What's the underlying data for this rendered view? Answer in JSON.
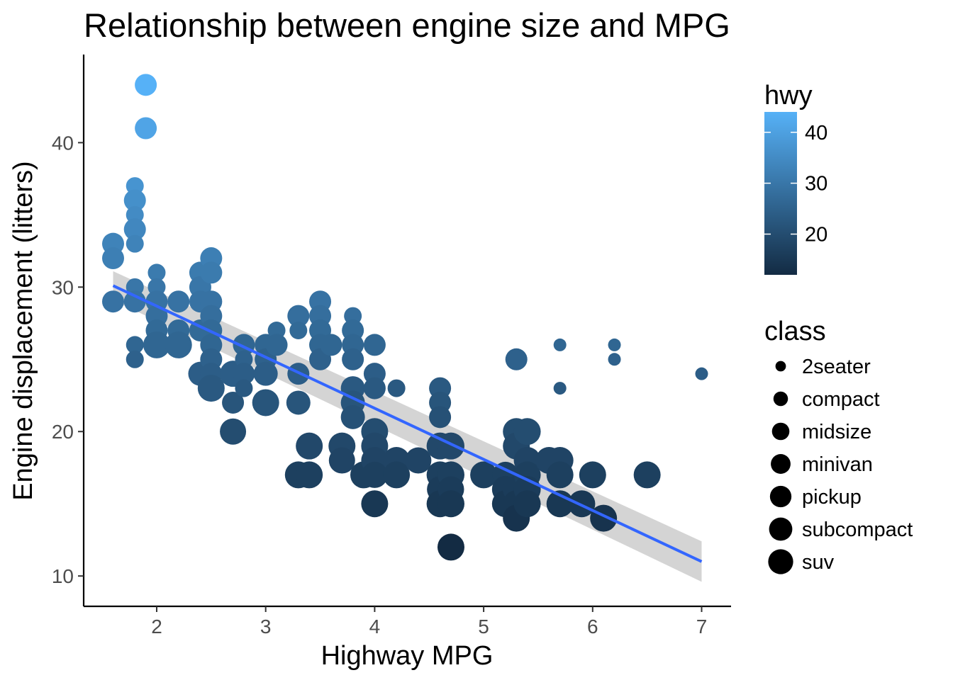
{
  "chart_data": {
    "type": "scatter",
    "title": "Relationship between engine size and MPG",
    "xlabel": "Highway MPG",
    "ylabel": "Engine displacement (litters)",
    "xlim": [
      1.33,
      7.27
    ],
    "ylim": [
      7.9,
      46.1
    ],
    "x_ticks": [
      2,
      3,
      4,
      5,
      6,
      7
    ],
    "y_ticks": [
      10,
      20,
      30,
      40
    ],
    "grid": false,
    "color_legend": {
      "title": "hwy",
      "min": 12,
      "max": 44,
      "ticks": [
        20,
        30,
        40
      ],
      "low_color": "#132B43",
      "high_color": "#56B1F7"
    },
    "size_legend": {
      "title": "class",
      "items": [
        "2seater",
        "compact",
        "midsize",
        "minivan",
        "pickup",
        "subcompact",
        "suv"
      ]
    },
    "legend_position": "right",
    "trend_line": {
      "method": "linear",
      "color": "#3366FF",
      "x": [
        1.6,
        7.0
      ],
      "y": [
        30.1,
        11.0
      ],
      "band_lower": [
        29.1,
        9.6
      ],
      "band_upper": [
        31.1,
        12.4
      ],
      "band_color": "#cccccc"
    },
    "points": [
      {
        "x": 1.6,
        "y": 33,
        "class": "subcompact"
      },
      {
        "x": 1.6,
        "y": 32,
        "class": "subcompact"
      },
      {
        "x": 1.6,
        "y": 29,
        "class": "subcompact"
      },
      {
        "x": 1.8,
        "y": 37,
        "class": "compact"
      },
      {
        "x": 1.8,
        "y": 36,
        "class": "subcompact"
      },
      {
        "x": 1.8,
        "y": 35,
        "class": "compact"
      },
      {
        "x": 1.8,
        "y": 34,
        "class": "subcompact"
      },
      {
        "x": 1.8,
        "y": 33,
        "class": "compact"
      },
      {
        "x": 1.8,
        "y": 30,
        "class": "compact"
      },
      {
        "x": 1.8,
        "y": 29,
        "class": "midsize"
      },
      {
        "x": 1.8,
        "y": 26,
        "class": "compact"
      },
      {
        "x": 1.8,
        "y": 25,
        "class": "compact"
      },
      {
        "x": 1.9,
        "y": 44,
        "class": "subcompact"
      },
      {
        "x": 1.9,
        "y": 41,
        "class": "subcompact"
      },
      {
        "x": 2.0,
        "y": 31,
        "class": "compact"
      },
      {
        "x": 2.0,
        "y": 30,
        "class": "compact"
      },
      {
        "x": 2.0,
        "y": 29,
        "class": "compact"
      },
      {
        "x": 2.0,
        "y": 29,
        "class": "subcompact"
      },
      {
        "x": 2.0,
        "y": 28,
        "class": "subcompact"
      },
      {
        "x": 2.0,
        "y": 27,
        "class": "subcompact"
      },
      {
        "x": 2.0,
        "y": 26,
        "class": "suv"
      },
      {
        "x": 2.2,
        "y": 29,
        "class": "midsize"
      },
      {
        "x": 2.2,
        "y": 27,
        "class": "midsize"
      },
      {
        "x": 2.2,
        "y": 26,
        "class": "suv"
      },
      {
        "x": 2.4,
        "y": 31,
        "class": "midsize"
      },
      {
        "x": 2.4,
        "y": 30,
        "class": "midsize"
      },
      {
        "x": 2.4,
        "y": 29,
        "class": "midsize"
      },
      {
        "x": 2.4,
        "y": 27,
        "class": "subcompact"
      },
      {
        "x": 2.4,
        "y": 24,
        "class": "minivan"
      },
      {
        "x": 2.5,
        "y": 32,
        "class": "midsize"
      },
      {
        "x": 2.5,
        "y": 31,
        "class": "midsize"
      },
      {
        "x": 2.5,
        "y": 29,
        "class": "subcompact"
      },
      {
        "x": 2.5,
        "y": 28,
        "class": "subcompact"
      },
      {
        "x": 2.5,
        "y": 27,
        "class": "subcompact"
      },
      {
        "x": 2.5,
        "y": 26,
        "class": "subcompact"
      },
      {
        "x": 2.5,
        "y": 25,
        "class": "subcompact"
      },
      {
        "x": 2.5,
        "y": 24,
        "class": "midsize"
      },
      {
        "x": 2.5,
        "y": 23,
        "class": "suv"
      },
      {
        "x": 2.7,
        "y": 24,
        "class": "pickup"
      },
      {
        "x": 2.7,
        "y": 22,
        "class": "midsize"
      },
      {
        "x": 2.7,
        "y": 20,
        "class": "pickup"
      },
      {
        "x": 2.8,
        "y": 26,
        "class": "midsize"
      },
      {
        "x": 2.8,
        "y": 25,
        "class": "compact"
      },
      {
        "x": 2.8,
        "y": 24,
        "class": "subcompact"
      },
      {
        "x": 2.8,
        "y": 23,
        "class": "compact"
      },
      {
        "x": 3.0,
        "y": 26,
        "class": "midsize"
      },
      {
        "x": 3.0,
        "y": 25,
        "class": "midsize"
      },
      {
        "x": 3.0,
        "y": 24,
        "class": "minivan"
      },
      {
        "x": 3.0,
        "y": 22,
        "class": "suv"
      },
      {
        "x": 3.1,
        "y": 27,
        "class": "compact"
      },
      {
        "x": 3.1,
        "y": 26,
        "class": "midsize"
      },
      {
        "x": 3.3,
        "y": 28,
        "class": "midsize"
      },
      {
        "x": 3.3,
        "y": 27,
        "class": "compact"
      },
      {
        "x": 3.3,
        "y": 24,
        "class": "midsize"
      },
      {
        "x": 3.3,
        "y": 22,
        "class": "minivan"
      },
      {
        "x": 3.3,
        "y": 17,
        "class": "suv"
      },
      {
        "x": 3.4,
        "y": 19,
        "class": "suv"
      },
      {
        "x": 3.4,
        "y": 17,
        "class": "suv"
      },
      {
        "x": 3.5,
        "y": 29,
        "class": "midsize"
      },
      {
        "x": 3.5,
        "y": 28,
        "class": "midsize"
      },
      {
        "x": 3.5,
        "y": 27,
        "class": "midsize"
      },
      {
        "x": 3.5,
        "y": 26,
        "class": "midsize"
      },
      {
        "x": 3.5,
        "y": 25,
        "class": "midsize"
      },
      {
        "x": 3.6,
        "y": 26,
        "class": "midsize"
      },
      {
        "x": 3.7,
        "y": 19,
        "class": "suv"
      },
      {
        "x": 3.7,
        "y": 18,
        "class": "pickup"
      },
      {
        "x": 3.8,
        "y": 28,
        "class": "compact"
      },
      {
        "x": 3.8,
        "y": 27,
        "class": "midsize"
      },
      {
        "x": 3.8,
        "y": 26,
        "class": "midsize"
      },
      {
        "x": 3.8,
        "y": 25,
        "class": "subcompact"
      },
      {
        "x": 3.8,
        "y": 23,
        "class": "minivan"
      },
      {
        "x": 3.8,
        "y": 22,
        "class": "minivan"
      },
      {
        "x": 3.8,
        "y": 21,
        "class": "minivan"
      },
      {
        "x": 3.9,
        "y": 17,
        "class": "suv"
      },
      {
        "x": 4.0,
        "y": 26,
        "class": "subcompact"
      },
      {
        "x": 4.0,
        "y": 24,
        "class": "subcompact"
      },
      {
        "x": 4.0,
        "y": 23,
        "class": "midsize"
      },
      {
        "x": 4.0,
        "y": 20,
        "class": "suv"
      },
      {
        "x": 4.0,
        "y": 19,
        "class": "suv"
      },
      {
        "x": 4.0,
        "y": 18,
        "class": "suv"
      },
      {
        "x": 4.0,
        "y": 17,
        "class": "pickup"
      },
      {
        "x": 4.0,
        "y": 15,
        "class": "suv"
      },
      {
        "x": 4.2,
        "y": 23,
        "class": "compact"
      },
      {
        "x": 4.2,
        "y": 18,
        "class": "suv"
      },
      {
        "x": 4.2,
        "y": 17,
        "class": "suv"
      },
      {
        "x": 4.4,
        "y": 18,
        "class": "pickup"
      },
      {
        "x": 4.6,
        "y": 23,
        "class": "subcompact"
      },
      {
        "x": 4.6,
        "y": 22,
        "class": "subcompact"
      },
      {
        "x": 4.6,
        "y": 21,
        "class": "subcompact"
      },
      {
        "x": 4.6,
        "y": 19,
        "class": "suv"
      },
      {
        "x": 4.6,
        "y": 17,
        "class": "suv"
      },
      {
        "x": 4.6,
        "y": 16,
        "class": "pickup"
      },
      {
        "x": 4.6,
        "y": 15,
        "class": "suv"
      },
      {
        "x": 4.7,
        "y": 19,
        "class": "suv"
      },
      {
        "x": 4.7,
        "y": 17,
        "class": "suv"
      },
      {
        "x": 4.7,
        "y": 16,
        "class": "pickup"
      },
      {
        "x": 4.7,
        "y": 15,
        "class": "suv"
      },
      {
        "x": 4.7,
        "y": 12,
        "class": "suv"
      },
      {
        "x": 5.0,
        "y": 17,
        "class": "suv"
      },
      {
        "x": 5.2,
        "y": 17,
        "class": "pickup"
      },
      {
        "x": 5.2,
        "y": 16,
        "class": "suv"
      },
      {
        "x": 5.2,
        "y": 15,
        "class": "suv"
      },
      {
        "x": 5.3,
        "y": 25,
        "class": "midsize"
      },
      {
        "x": 5.3,
        "y": 20,
        "class": "suv"
      },
      {
        "x": 5.3,
        "y": 19,
        "class": "suv"
      },
      {
        "x": 5.3,
        "y": 16,
        "class": "suv"
      },
      {
        "x": 5.3,
        "y": 15,
        "class": "suv"
      },
      {
        "x": 5.3,
        "y": 14,
        "class": "suv"
      },
      {
        "x": 5.4,
        "y": 20,
        "class": "suv"
      },
      {
        "x": 5.4,
        "y": 18,
        "class": "suv"
      },
      {
        "x": 5.4,
        "y": 17,
        "class": "suv"
      },
      {
        "x": 5.4,
        "y": 16,
        "class": "suv"
      },
      {
        "x": 5.4,
        "y": 15,
        "class": "suv"
      },
      {
        "x": 5.6,
        "y": 18,
        "class": "suv"
      },
      {
        "x": 5.7,
        "y": 26,
        "class": "2seater"
      },
      {
        "x": 5.7,
        "y": 23,
        "class": "2seater"
      },
      {
        "x": 5.7,
        "y": 18,
        "class": "suv"
      },
      {
        "x": 5.7,
        "y": 17,
        "class": "suv"
      },
      {
        "x": 5.7,
        "y": 15,
        "class": "suv"
      },
      {
        "x": 5.9,
        "y": 15,
        "class": "suv"
      },
      {
        "x": 6.0,
        "y": 17,
        "class": "suv"
      },
      {
        "x": 6.1,
        "y": 14,
        "class": "suv"
      },
      {
        "x": 6.2,
        "y": 26,
        "class": "2seater"
      },
      {
        "x": 6.2,
        "y": 25,
        "class": "2seater"
      },
      {
        "x": 6.5,
        "y": 17,
        "class": "suv"
      },
      {
        "x": 7.0,
        "y": 24,
        "class": "2seater"
      }
    ]
  }
}
